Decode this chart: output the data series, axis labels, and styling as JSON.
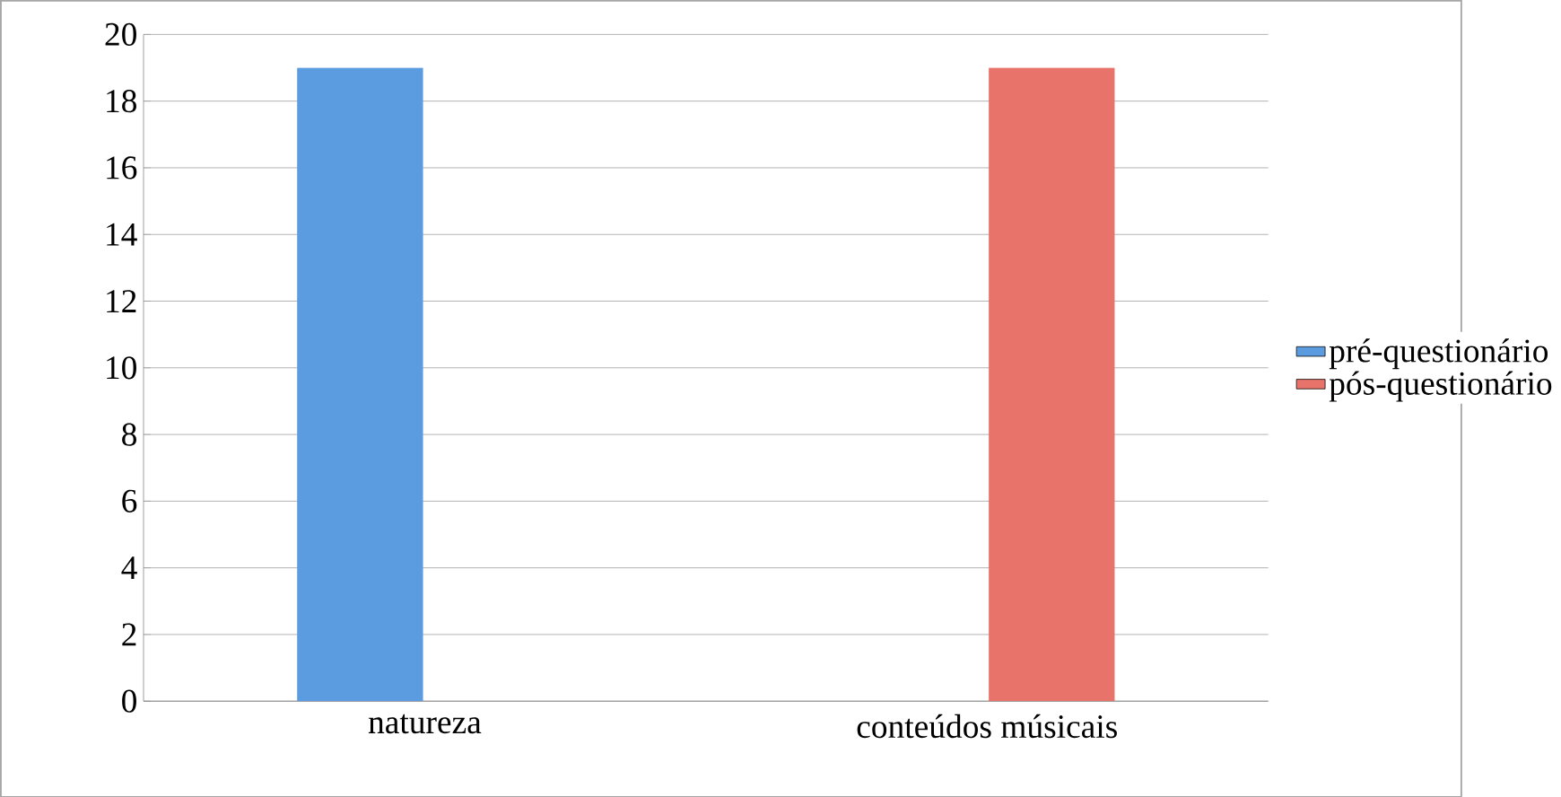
{
  "chart_data": {
    "type": "bar",
    "categories": [
      "natureza",
      "conteúdos músicais"
    ],
    "series": [
      {
        "name": "pré-questionário",
        "color": "#5b9be0",
        "values": [
          19,
          null
        ]
      },
      {
        "name": "pós-questionário",
        "color": "#e8736b",
        "values": [
          null,
          19
        ]
      }
    ],
    "ylim": [
      0,
      20
    ],
    "yticks": [
      0,
      2,
      4,
      6,
      8,
      10,
      12,
      14,
      16,
      18,
      20
    ],
    "grid": "y",
    "legend": "right"
  }
}
